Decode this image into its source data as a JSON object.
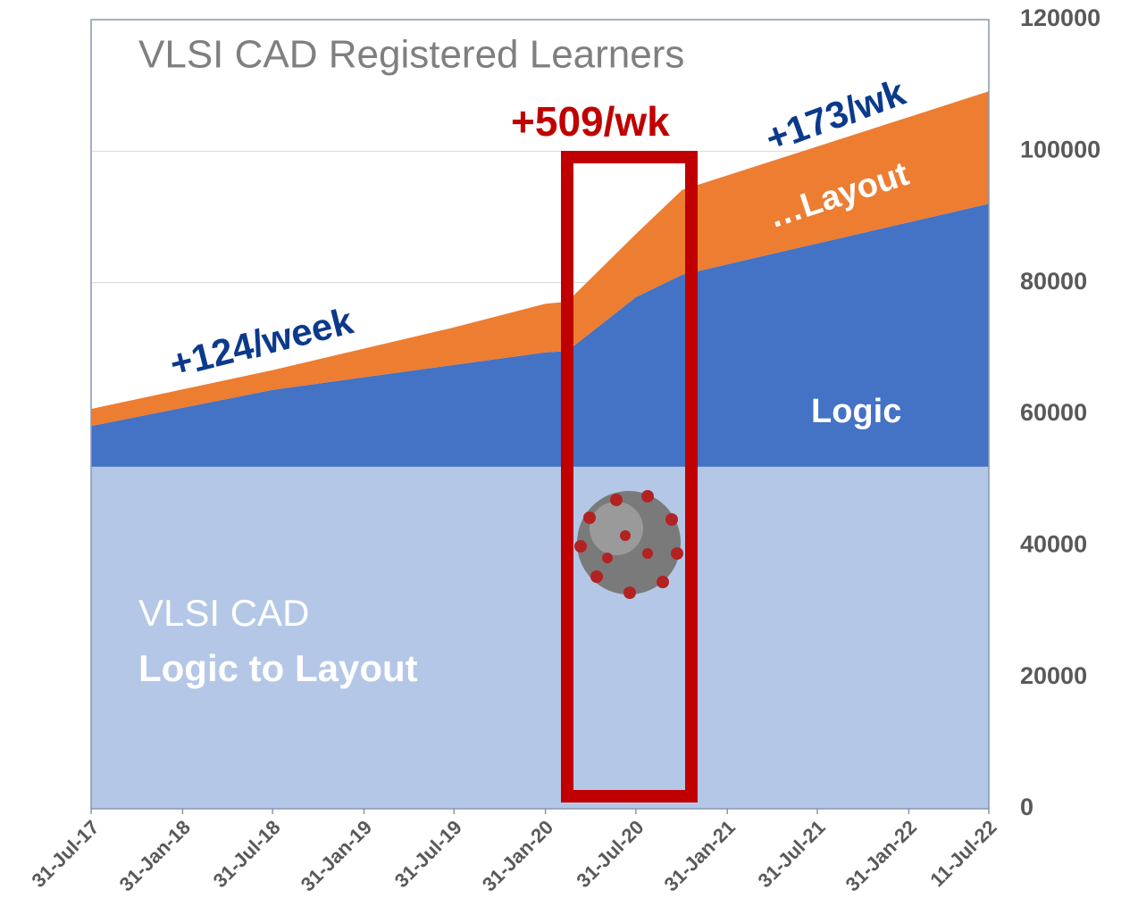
{
  "chart_data": {
    "type": "stacked-area",
    "title": "VLSI CAD Registered Learners",
    "x": [
      "2017-07-31",
      "2018-07-31",
      "2019-07-31",
      "2020-01-31",
      "2020-03-15",
      "2020-07-31",
      "2020-11-01",
      "2022-07-11"
    ],
    "series": [
      {
        "name": "Logic to Layout",
        "color": "#b4c7e7",
        "values": [
          52000,
          52000,
          52000,
          52000,
          52000,
          52000,
          52000,
          52000
        ]
      },
      {
        "name": "Logic",
        "color": "#4472c4",
        "values": [
          6200,
          11700,
          15500,
          17400,
          17600,
          25800,
          29200,
          40000
        ]
      },
      {
        "name": "…Layout",
        "color": "#ed7d31",
        "values": [
          2600,
          3000,
          5700,
          7400,
          7500,
          9600,
          12900,
          17100
        ]
      }
    ],
    "annotations": [
      "VLSI CAD",
      "+124/week",
      "+509/wk",
      "+173/wk"
    ],
    "xlim": [
      "2017-07-31",
      "2022-07-11"
    ],
    "xticks": [
      {
        "value": "2017-07-31",
        "label": "31-Jul-17"
      },
      {
        "value": "2018-01-31",
        "label": "31-Jan-18"
      },
      {
        "value": "2018-07-31",
        "label": "31-Jul-18"
      },
      {
        "value": "2019-01-31",
        "label": "31-Jan-19"
      },
      {
        "value": "2019-07-31",
        "label": "31-Jul-19"
      },
      {
        "value": "2020-01-31",
        "label": "31-Jan-20"
      },
      {
        "value": "2020-07-31",
        "label": "31-Jul-20"
      },
      {
        "value": "2021-01-31",
        "label": "31-Jan-21"
      },
      {
        "value": "2021-07-31",
        "label": "31-Jul-21"
      },
      {
        "value": "2022-01-31",
        "label": "31-Jan-22"
      },
      {
        "value": "2022-07-11",
        "label": "11-Jul-22"
      }
    ],
    "ylim": [
      0,
      120000
    ],
    "yticks": [
      0,
      20000,
      40000,
      60000,
      80000,
      100000,
      120000
    ],
    "grid": true
  }
}
